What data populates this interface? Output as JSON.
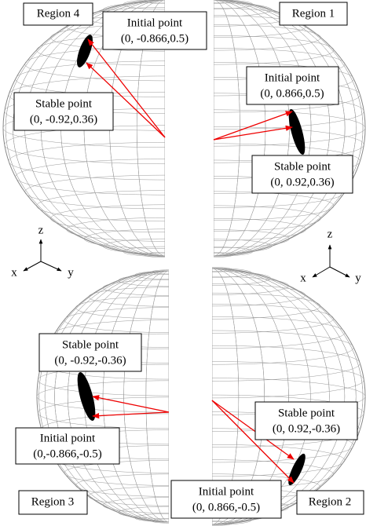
{
  "regions": [
    {
      "name": "Region 4",
      "initial": {
        "title": "Initial point",
        "coords": "(0, -0.866,0.5)"
      },
      "stable": {
        "title": "Stable point",
        "coords": "(0, -0.92,0.36)"
      }
    },
    {
      "name": "Region 1",
      "initial": {
        "title": "Initial point",
        "coords": "(0, 0.866,0.5)"
      },
      "stable": {
        "title": "Stable point",
        "coords": "(0, 0.92,0.36)"
      }
    },
    {
      "name": "Region 3",
      "initial": {
        "title": "Initial point",
        "coords": "(0,-0.866,-0.5)"
      },
      "stable": {
        "title": "Stable point",
        "coords": "(0, -0.92,-0.36)"
      }
    },
    {
      "name": "Region 2",
      "initial": {
        "title": "Initial point",
        "coords": "(0, 0.866,-0.5)"
      },
      "stable": {
        "title": "Stable point",
        "coords": "(0, 0.92,-0.36)"
      }
    }
  ],
  "axes": [
    {
      "z": "z",
      "x": "x",
      "y": "y"
    },
    {
      "z": "z",
      "x": "x",
      "y": "y"
    }
  ]
}
